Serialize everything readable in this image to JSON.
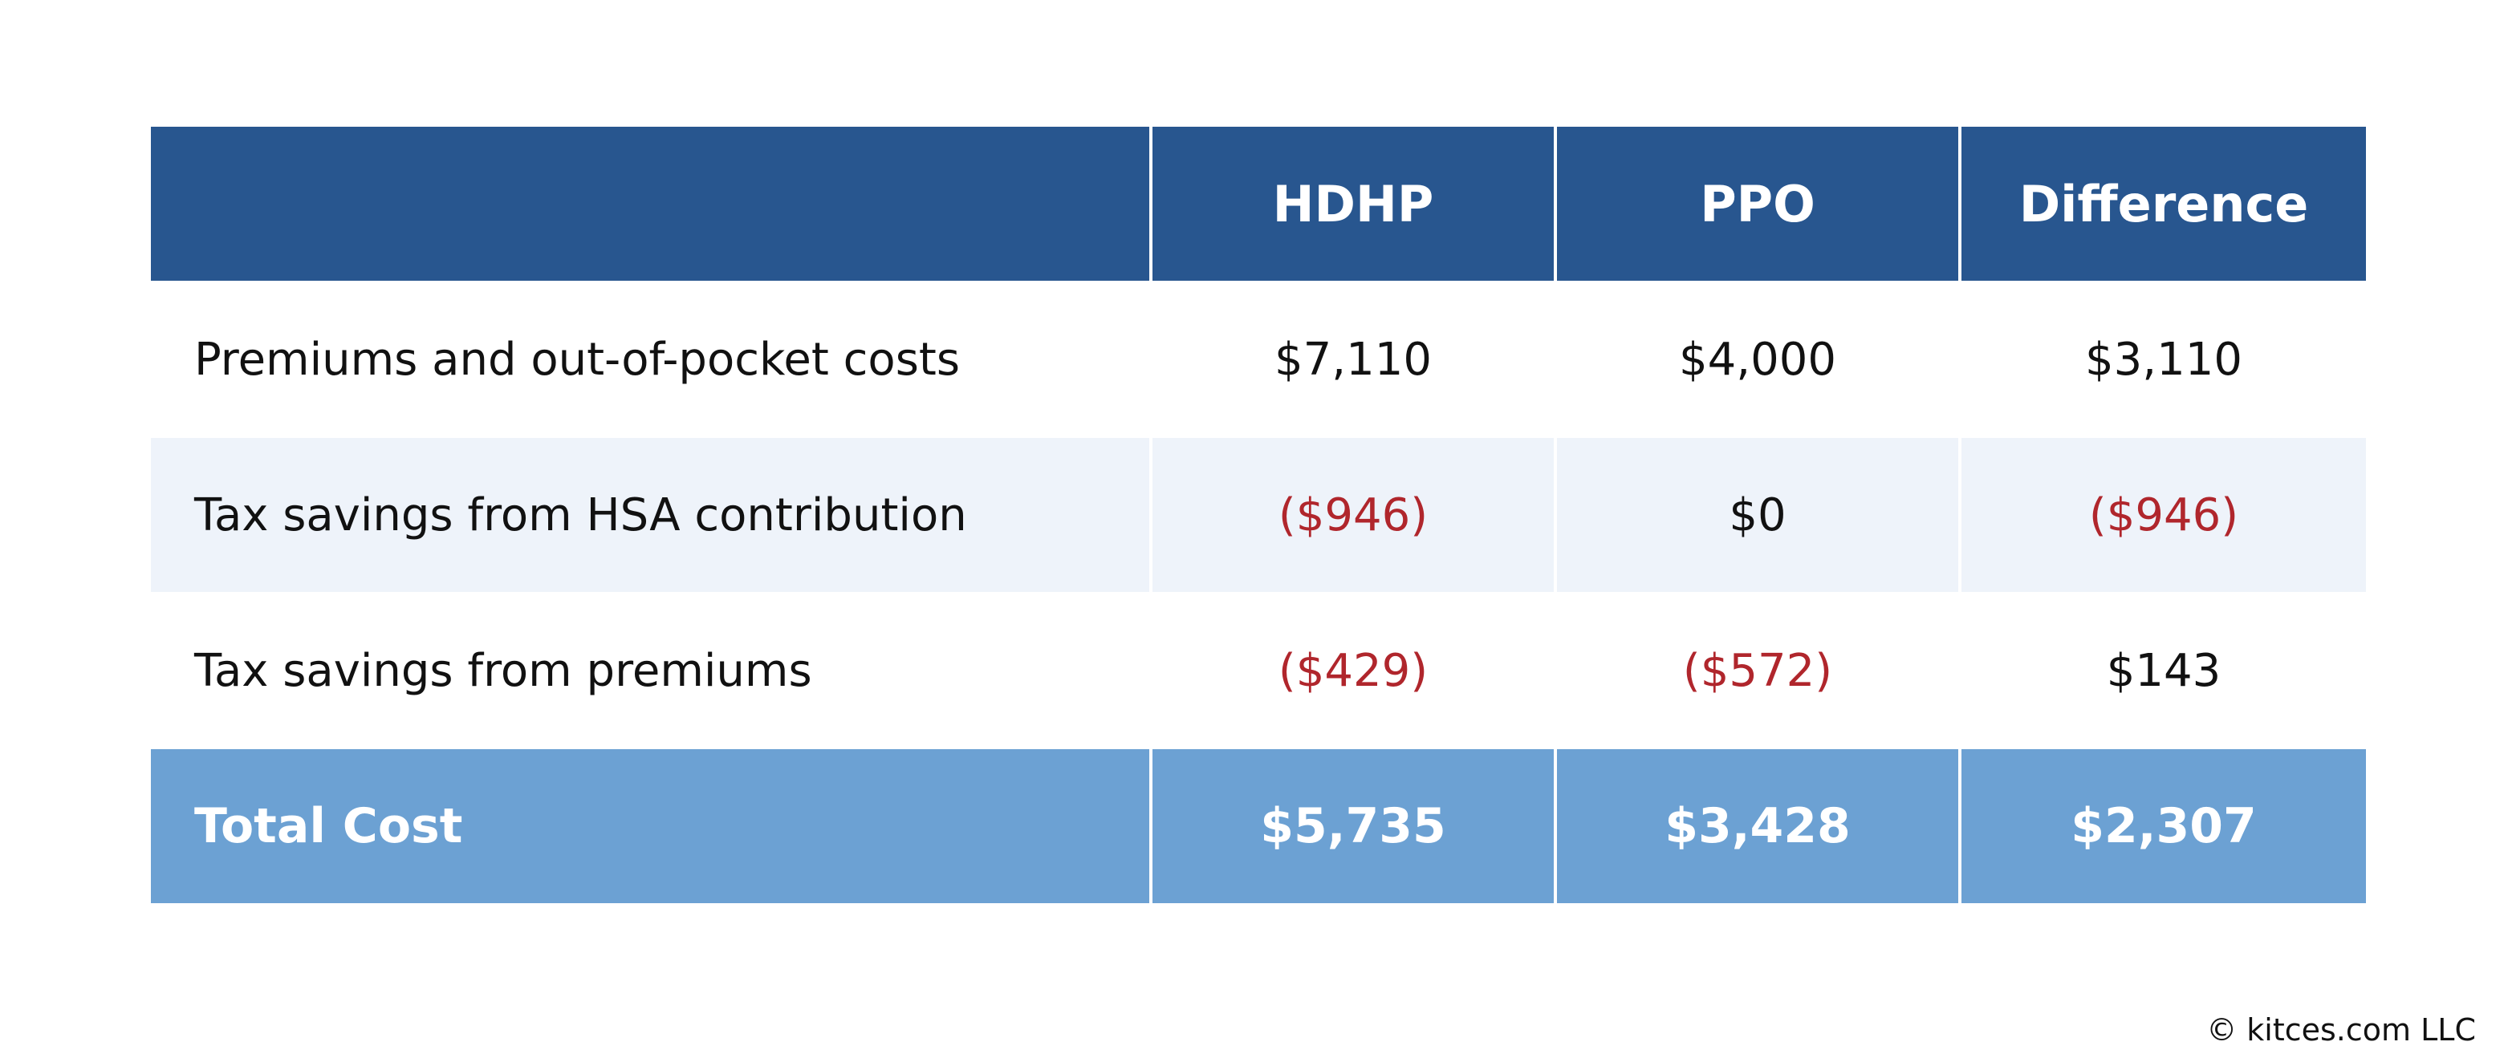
{
  "table": {
    "header": {
      "blank": "",
      "col1": "HDHP",
      "col2": "PPO",
      "col3": "Difference"
    },
    "rows": [
      {
        "label": "Premiums and out-of-pocket costs",
        "hdhp": "$7,110",
        "ppo": "$4,000",
        "difference": "$3,110"
      },
      {
        "label": "Tax savings from HSA contribution",
        "hdhp": "($946)",
        "ppo": "$0",
        "difference": "($946)"
      },
      {
        "label": "Tax savings from premiums",
        "hdhp": "($429)",
        "ppo": "($572)",
        "difference": "$143"
      }
    ],
    "total": {
      "label": "Total Cost",
      "hdhp": "$5,735",
      "ppo": "$3,428",
      "difference": "$2,307"
    }
  },
  "colors": {
    "header_bg": "#28568f",
    "total_bg": "#6ca1d3",
    "tint_row_bg": "#eef3fa",
    "negative_text": "#b0262c"
  },
  "footer": {
    "copyright": "© kitces.com LLC"
  }
}
